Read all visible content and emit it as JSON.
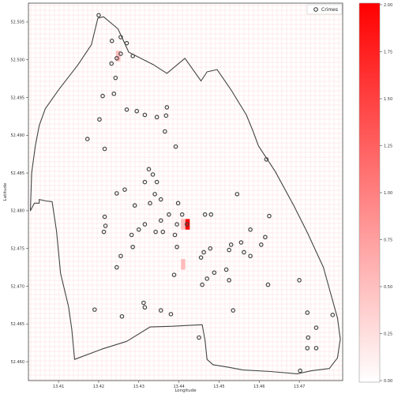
{
  "chart_data": {
    "type": "scatter",
    "xlabel": "Longitude",
    "ylabel": "Latitude",
    "xlim": [
      13.4025,
      13.4808
    ],
    "ylim": [
      52.4575,
      52.5075
    ],
    "xticks": [
      13.41,
      13.42,
      13.43,
      13.44,
      13.45,
      13.46,
      13.47
    ],
    "xtick_labels": [
      "13.41",
      "13.42",
      "13.43",
      "13.44",
      "13.45",
      "13.46",
      "13.47"
    ],
    "yticks": [
      52.46,
      52.465,
      52.47,
      52.475,
      52.48,
      52.485,
      52.49,
      52.495,
      52.5,
      52.505
    ],
    "ytick_labels": [
      "52.460",
      "52.465",
      "52.470",
      "52.475",
      "52.480",
      "52.485",
      "52.490",
      "52.495",
      "52.500",
      "52.505"
    ],
    "grid": true,
    "legend": {
      "label": "Crimes",
      "placement": "top-right"
    },
    "boundary": [
      [
        13.4198,
        52.5055
      ],
      [
        13.4212,
        52.5057
      ],
      [
        13.4248,
        52.5041
      ],
      [
        13.4275,
        52.501
      ],
      [
        13.4338,
        52.4993
      ],
      [
        13.437,
        52.4982
      ],
      [
        13.4415,
        52.5002
      ],
      [
        13.4455,
        52.4972
      ],
      [
        13.447,
        52.4984
      ],
      [
        13.4495,
        52.4987
      ],
      [
        13.453,
        52.496
      ],
      [
        13.4568,
        52.4927
      ],
      [
        13.4585,
        52.4905
      ],
      [
        13.4598,
        52.4886
      ],
      [
        13.464,
        52.4852
      ],
      [
        13.4685,
        52.4808
      ],
      [
        13.472,
        52.4771
      ],
      [
        13.476,
        52.4725
      ],
      [
        13.4795,
        52.4658
      ],
      [
        13.4802,
        52.463
      ],
      [
        13.4795,
        52.4605
      ],
      [
        13.4775,
        52.4591
      ],
      [
        13.473,
        52.4588
      ],
      [
        13.4695,
        52.4584
      ],
      [
        13.4628,
        52.4587
      ],
      [
        13.456,
        52.4589
      ],
      [
        13.452,
        52.4593
      ],
      [
        13.4485,
        52.4596
      ],
      [
        13.447,
        52.4603
      ],
      [
        13.4465,
        52.4628
      ],
      [
        13.4458,
        52.4649
      ],
      [
        13.442,
        52.4648
      ],
      [
        13.4385,
        52.4647
      ],
      [
        13.4328,
        52.4646
      ],
      [
        13.427,
        52.4627
      ],
      [
        13.421,
        52.4617
      ],
      [
        13.414,
        52.4603
      ],
      [
        13.4133,
        52.4643
      ],
      [
        13.4125,
        52.4673
      ],
      [
        13.4105,
        52.4717
      ],
      [
        13.4095,
        52.4773
      ],
      [
        13.4084,
        52.4812
      ],
      [
        13.4068,
        52.4813
      ],
      [
        13.4052,
        52.4815
      ],
      [
        13.4052,
        52.481
      ],
      [
        13.404,
        52.481
      ],
      [
        13.403,
        52.48
      ],
      [
        13.4033,
        52.485
      ],
      [
        13.4042,
        52.4885
      ],
      [
        13.4052,
        52.4913
      ],
      [
        13.4067,
        52.4935
      ],
      [
        13.41,
        52.496
      ],
      [
        13.4148,
        52.4993
      ],
      [
        13.4182,
        52.502
      ],
      [
        13.4198,
        52.5055
      ]
    ],
    "points": [
      {
        "x": 13.42,
        "y": 52.5059
      },
      {
        "x": 13.4233,
        "y": 52.5025
      },
      {
        "x": 13.4255,
        "y": 52.503
      },
      {
        "x": 13.427,
        "y": 52.5022
      },
      {
        "x": 13.4285,
        "y": 52.5005
      },
      {
        "x": 13.4255,
        "y": 52.5008
      },
      {
        "x": 13.4245,
        "y": 52.5002
      },
      {
        "x": 13.4232,
        "y": 52.4995
      },
      {
        "x": 13.4242,
        "y": 52.4976
      },
      {
        "x": 13.421,
        "y": 52.4952
      },
      {
        "x": 13.4238,
        "y": 52.4955
      },
      {
        "x": 13.427,
        "y": 52.4934
      },
      {
        "x": 13.4295,
        "y": 52.4932
      },
      {
        "x": 13.4315,
        "y": 52.4927
      },
      {
        "x": 13.4345,
        "y": 52.4924
      },
      {
        "x": 13.437,
        "y": 52.4937
      },
      {
        "x": 13.4368,
        "y": 52.4926
      },
      {
        "x": 13.4365,
        "y": 52.4905
      },
      {
        "x": 13.4172,
        "y": 52.4895
      },
      {
        "x": 13.4202,
        "y": 52.4921
      },
      {
        "x": 13.4215,
        "y": 52.4882
      },
      {
        "x": 13.4392,
        "y": 52.4885
      },
      {
        "x": 13.4618,
        "y": 52.4868
      },
      {
        "x": 13.4245,
        "y": 52.4823
      },
      {
        "x": 13.4265,
        "y": 52.4828
      },
      {
        "x": 13.4315,
        "y": 52.4838
      },
      {
        "x": 13.4335,
        "y": 52.4848
      },
      {
        "x": 13.4325,
        "y": 52.4855
      },
      {
        "x": 13.4345,
        "y": 52.4838
      },
      {
        "x": 13.434,
        "y": 52.4822
      },
      {
        "x": 13.4355,
        "y": 52.4815
      },
      {
        "x": 13.429,
        "y": 52.4807
      },
      {
        "x": 13.4328,
        "y": 52.481
      },
      {
        "x": 13.4398,
        "y": 52.481
      },
      {
        "x": 13.4408,
        "y": 52.4795
      },
      {
        "x": 13.442,
        "y": 52.4782
      },
      {
        "x": 13.4375,
        "y": 52.4795
      },
      {
        "x": 13.4395,
        "y": 52.4782
      },
      {
        "x": 13.436,
        "y": 52.4772
      },
      {
        "x": 13.4342,
        "y": 52.4772
      },
      {
        "x": 13.4355,
        "y": 52.4787
      },
      {
        "x": 13.4315,
        "y": 52.4782
      },
      {
        "x": 13.43,
        "y": 52.4775
      },
      {
        "x": 13.4282,
        "y": 52.4768
      },
      {
        "x": 13.4285,
        "y": 52.4752
      },
      {
        "x": 13.4255,
        "y": 52.474
      },
      {
        "x": 13.4245,
        "y": 52.4725
      },
      {
        "x": 13.4215,
        "y": 52.4792
      },
      {
        "x": 13.4217,
        "y": 52.478
      },
      {
        "x": 13.4213,
        "y": 52.4772
      },
      {
        "x": 13.439,
        "y": 52.4768
      },
      {
        "x": 13.4395,
        "y": 52.4752
      },
      {
        "x": 13.4388,
        "y": 52.4715
      },
      {
        "x": 13.4465,
        "y": 52.4795
      },
      {
        "x": 13.448,
        "y": 52.4795
      },
      {
        "x": 13.4545,
        "y": 52.4822
      },
      {
        "x": 13.4625,
        "y": 52.4793
      },
      {
        "x": 13.4578,
        "y": 52.4775
      },
      {
        "x": 13.4615,
        "y": 52.4765
      },
      {
        "x": 13.4605,
        "y": 52.4755
      },
      {
        "x": 13.4555,
        "y": 52.4758
      },
      {
        "x": 13.453,
        "y": 52.4755
      },
      {
        "x": 13.4525,
        "y": 52.4748
      },
      {
        "x": 13.4562,
        "y": 52.4745
      },
      {
        "x": 13.4578,
        "y": 52.474
      },
      {
        "x": 13.4478,
        "y": 52.475
      },
      {
        "x": 13.4462,
        "y": 52.4745
      },
      {
        "x": 13.4455,
        "y": 52.4738
      },
      {
        "x": 13.4518,
        "y": 52.4722
      },
      {
        "x": 13.4488,
        "y": 52.4718
      },
      {
        "x": 13.447,
        "y": 52.471
      },
      {
        "x": 13.4458,
        "y": 52.4702
      },
      {
        "x": 13.4525,
        "y": 52.4708
      },
      {
        "x": 13.4622,
        "y": 52.4702
      },
      {
        "x": 13.47,
        "y": 52.4708
      },
      {
        "x": 13.4312,
        "y": 52.4678
      },
      {
        "x": 13.4315,
        "y": 52.4672
      },
      {
        "x": 13.4355,
        "y": 52.4668
      },
      {
        "x": 13.438,
        "y": 52.4663
      },
      {
        "x": 13.4258,
        "y": 52.466
      },
      {
        "x": 13.419,
        "y": 52.4669
      },
      {
        "x": 13.4535,
        "y": 52.4668
      },
      {
        "x": 13.445,
        "y": 52.4632
      },
      {
        "x": 13.472,
        "y": 52.4665
      },
      {
        "x": 13.4783,
        "y": 52.4662
      },
      {
        "x": 13.4742,
        "y": 52.4645
      },
      {
        "x": 13.4722,
        "y": 52.4632
      },
      {
        "x": 13.472,
        "y": 52.4618
      },
      {
        "x": 13.4742,
        "y": 52.4618
      },
      {
        "x": 13.4702,
        "y": 52.4588
      }
    ],
    "heatmap": {
      "cmap": "white-to-red",
      "vmin": 0,
      "vmax": 2,
      "colorbar_ticks": [
        0,
        0.25,
        0.5,
        0.75,
        1.0,
        1.25,
        1.5,
        1.75,
        2.0
      ],
      "colorbar_tick_labels": [
        "0.00",
        "0.25",
        "0.50",
        "0.75",
        "1.00",
        "1.25",
        "1.50",
        "1.75",
        "2.00"
      ],
      "cells": [
        {
          "x0": 13.4243,
          "x1": 13.4254,
          "y0": 52.4998,
          "y1": 52.5012,
          "value": 1
        },
        {
          "x0": 13.4405,
          "x1": 13.4416,
          "y0": 52.4775,
          "y1": 52.4789,
          "value": 1
        },
        {
          "x0": 13.4416,
          "x1": 13.4427,
          "y0": 52.4775,
          "y1": 52.4789,
          "value": 2
        },
        {
          "x0": 13.4405,
          "x1": 13.4416,
          "y0": 52.4722,
          "y1": 52.4736,
          "value": 1
        }
      ]
    }
  }
}
